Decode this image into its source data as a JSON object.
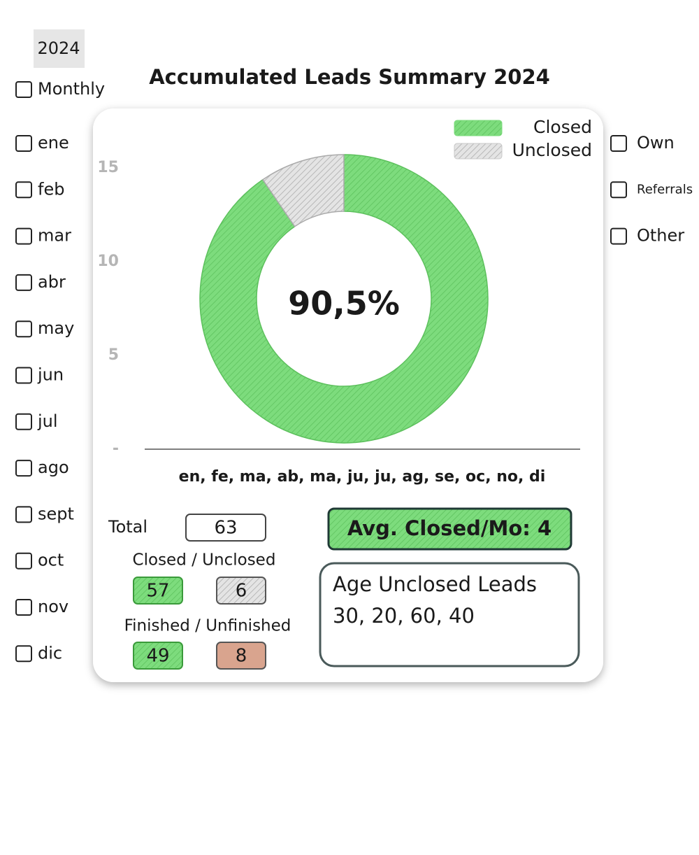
{
  "year_tab": "2024",
  "left_filters": [
    "Monthly",
    "ene",
    "feb",
    "mar",
    "abr",
    "may",
    "jun",
    "jul",
    "ago",
    "sept",
    "oct",
    "nov",
    "dic"
  ],
  "right_filters": [
    "Own",
    "Referrals",
    "Other"
  ],
  "chart_data": {
    "type": "donut",
    "title": "Accumulated Leads Summary 2024",
    "center_label": "90,5%",
    "categories": [
      "Closed",
      "Unclosed"
    ],
    "values": [
      57,
      6
    ],
    "colors": [
      "#7ddc7d",
      "#c8c8c8"
    ],
    "legend": "top-right",
    "ylim": [
      0,
      15
    ],
    "yticks": [
      15,
      10,
      5,
      {
        "value": 0,
        "label": "-"
      }
    ],
    "xlabel": "en, fe, ma, ab, ma, ju, ju, ag, se, oc, no, di"
  },
  "stats": {
    "total_label": "Total",
    "total": 63,
    "closed_unclosed_label": "Closed / Unclosed",
    "finished_label": "Finished / Unfinished",
    "finished": 49,
    "unfinished": 8,
    "avg_closed": "Avg. Closed/Mo: 4",
    "age_title": "Age Unclosed Leads",
    "age_values": "30, 20, 60, 40"
  }
}
